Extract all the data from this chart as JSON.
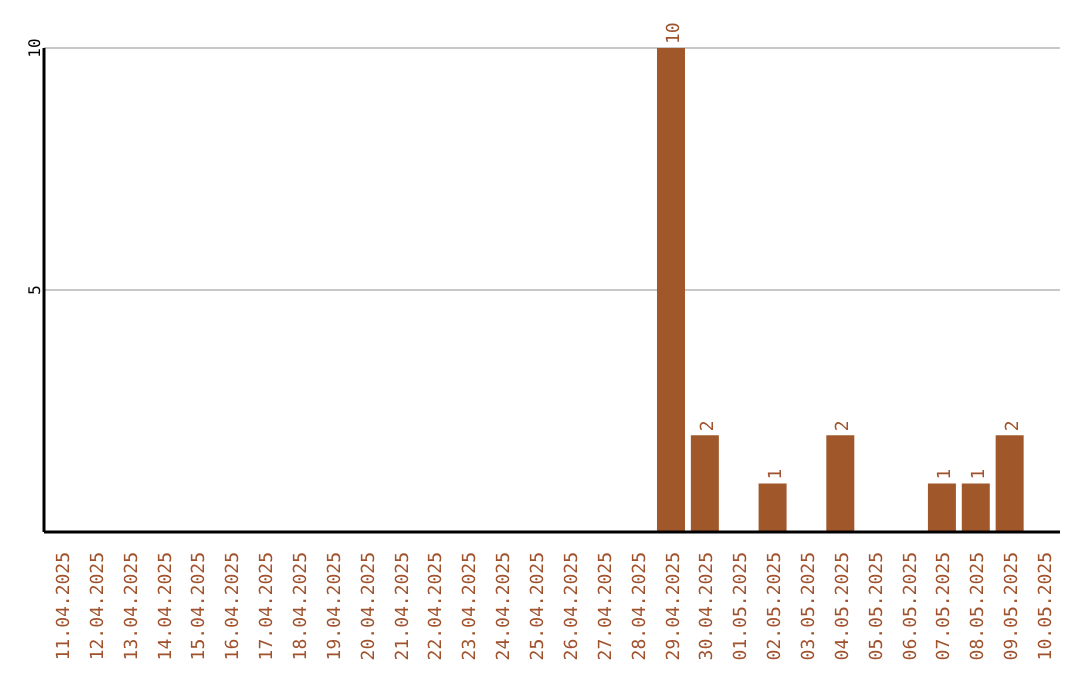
{
  "chart_data": {
    "type": "bar",
    "categories": [
      "11.04.2025",
      "12.04.2025",
      "13.04.2025",
      "14.04.2025",
      "15.04.2025",
      "16.04.2025",
      "17.04.2025",
      "18.04.2025",
      "19.04.2025",
      "20.04.2025",
      "21.04.2025",
      "22.04.2025",
      "23.04.2025",
      "24.04.2025",
      "25.04.2025",
      "26.04.2025",
      "27.04.2025",
      "28.04.2025",
      "29.04.2025",
      "30.04.2025",
      "01.05.2025",
      "02.05.2025",
      "03.05.2025",
      "04.05.2025",
      "05.05.2025",
      "06.05.2025",
      "07.05.2025",
      "08.05.2025",
      "09.05.2025",
      "10.05.2025"
    ],
    "values": [
      0,
      0,
      0,
      0,
      0,
      0,
      0,
      0,
      0,
      0,
      0,
      0,
      0,
      0,
      0,
      0,
      0,
      0,
      10,
      2,
      0,
      1,
      0,
      2,
      0,
      0,
      1,
      1,
      2,
      0
    ],
    "value_labels": [
      null,
      null,
      null,
      null,
      null,
      null,
      null,
      null,
      null,
      null,
      null,
      null,
      null,
      null,
      null,
      null,
      null,
      null,
      "10",
      "2",
      null,
      "1",
      null,
      "2",
      null,
      null,
      "1",
      "1",
      "2",
      null
    ],
    "color": "#a0582a",
    "ylim": [
      0,
      10
    ],
    "yticks": [
      {
        "value": 0,
        "label": null
      },
      5,
      10
    ],
    "grid": "y"
  }
}
